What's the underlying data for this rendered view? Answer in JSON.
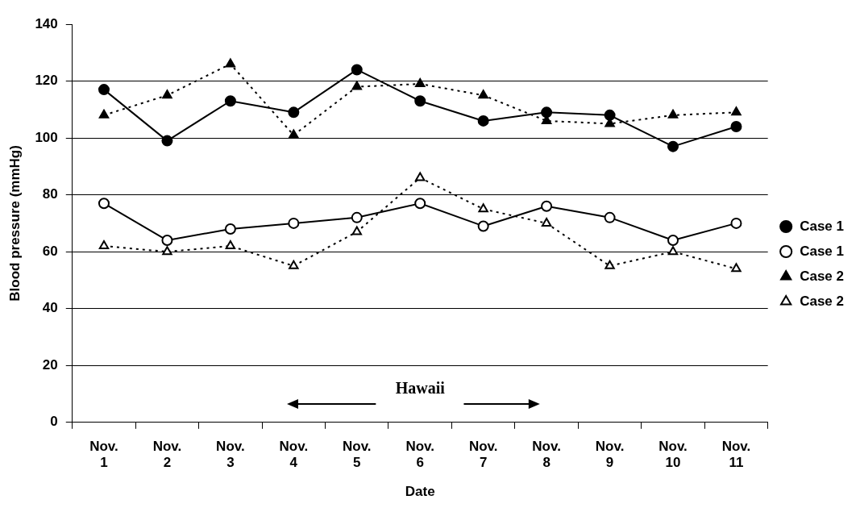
{
  "chart_data": {
    "type": "line",
    "xlabel": "Date",
    "ylabel": "Blood pressure (mmHg)",
    "categories": [
      "Nov. 1",
      "Nov. 2",
      "Nov. 3",
      "Nov. 4",
      "Nov. 5",
      "Nov. 6",
      "Nov. 7",
      "Nov. 8",
      "Nov. 9",
      "Nov. 10",
      "Nov. 11"
    ],
    "series": [
      {
        "name": "Case 1",
        "color": "#000000",
        "marker": "circle",
        "line_style": "solid",
        "values": [
          117,
          99,
          113,
          109,
          124,
          113,
          106,
          109,
          108,
          97,
          104
        ]
      },
      {
        "name": "Case 1",
        "color": "#000000",
        "marker": "circle",
        "line_style": "solid",
        "values": [
          77,
          64,
          68,
          70,
          72,
          77,
          69,
          76,
          72,
          64,
          70
        ]
      },
      {
        "name": "Case 2",
        "color": "#000000",
        "marker": "triangle",
        "line_style": "dotted",
        "values": [
          108,
          115,
          126,
          101,
          118,
          119,
          115,
          106,
          105,
          108,
          109
        ]
      },
      {
        "name": "Case 2",
        "color": "#000000",
        "marker": "triangle",
        "line_style": "dotted",
        "values": [
          62,
          60,
          62,
          55,
          67,
          86,
          75,
          70,
          55,
          60,
          54
        ]
      }
    ],
    "ylim": [
      0,
      140
    ],
    "yticks": [
      0,
      20,
      40,
      60,
      80,
      100,
      120,
      140
    ],
    "grid": "y",
    "legend": "right",
    "annotations": [
      "Hawaii"
    ]
  }
}
